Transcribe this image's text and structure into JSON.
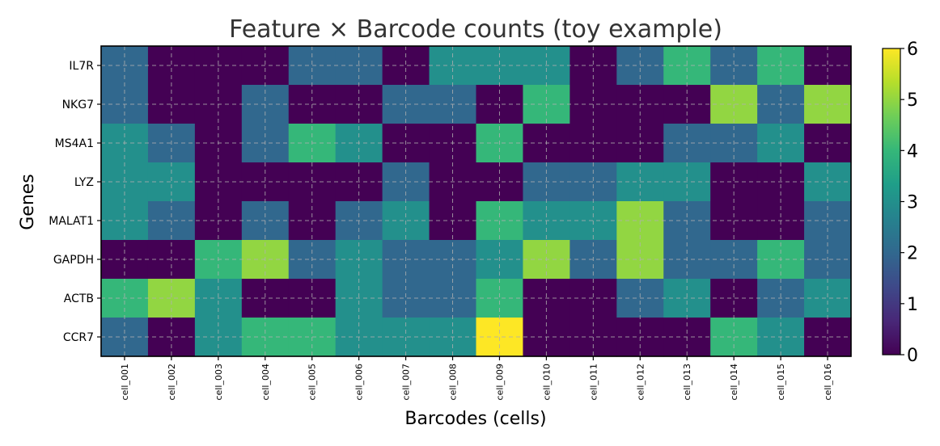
{
  "chart_data": {
    "type": "heatmap",
    "title": "Feature × Barcode counts (toy example)",
    "xlabel": "Barcodes (cells)",
    "ylabel": "Genes",
    "rows": [
      "IL7R",
      "NKG7",
      "MS4A1",
      "LYZ",
      "MALAT1",
      "GAPDH",
      "ACTB",
      "CCR7"
    ],
    "columns": [
      "cell_001",
      "cell_002",
      "cell_003",
      "cell_004",
      "cell_005",
      "cell_006",
      "cell_007",
      "cell_008",
      "cell_009",
      "cell_010",
      "cell_011",
      "cell_012",
      "cell_013",
      "cell_014",
      "cell_015",
      "cell_016"
    ],
    "values": [
      [
        2,
        0,
        0,
        0,
        2,
        2,
        0,
        3,
        3,
        3,
        0,
        2,
        4,
        2,
        4,
        0
      ],
      [
        2,
        0,
        0,
        2,
        0,
        0,
        2,
        2,
        0,
        4,
        0,
        0,
        0,
        5,
        2,
        5
      ],
      [
        3,
        2,
        0,
        2,
        4,
        3,
        0,
        0,
        4,
        0,
        0,
        0,
        2,
        2,
        3,
        0
      ],
      [
        3,
        3,
        0,
        0,
        0,
        0,
        2,
        0,
        0,
        2,
        2,
        3,
        3,
        0,
        0,
        3
      ],
      [
        3,
        2,
        0,
        2,
        0,
        2,
        3,
        0,
        4,
        3,
        3,
        5,
        2,
        0,
        0,
        2
      ],
      [
        0,
        0,
        4,
        5,
        2,
        3,
        2,
        2,
        3,
        5,
        2,
        5,
        2,
        2,
        4,
        2
      ],
      [
        4,
        5,
        3,
        0,
        0,
        3,
        2,
        2,
        4,
        0,
        0,
        2,
        3,
        0,
        2,
        3
      ],
      [
        2,
        0,
        3,
        4,
        4,
        3,
        3,
        3,
        6,
        0,
        0,
        0,
        0,
        4,
        3,
        0
      ]
    ],
    "colorscale": "viridis",
    "vmin": 0,
    "vmax": 6,
    "colorbar_ticks": [
      "0",
      "1",
      "2",
      "3",
      "4",
      "5",
      "6"
    ],
    "grid": true
  }
}
